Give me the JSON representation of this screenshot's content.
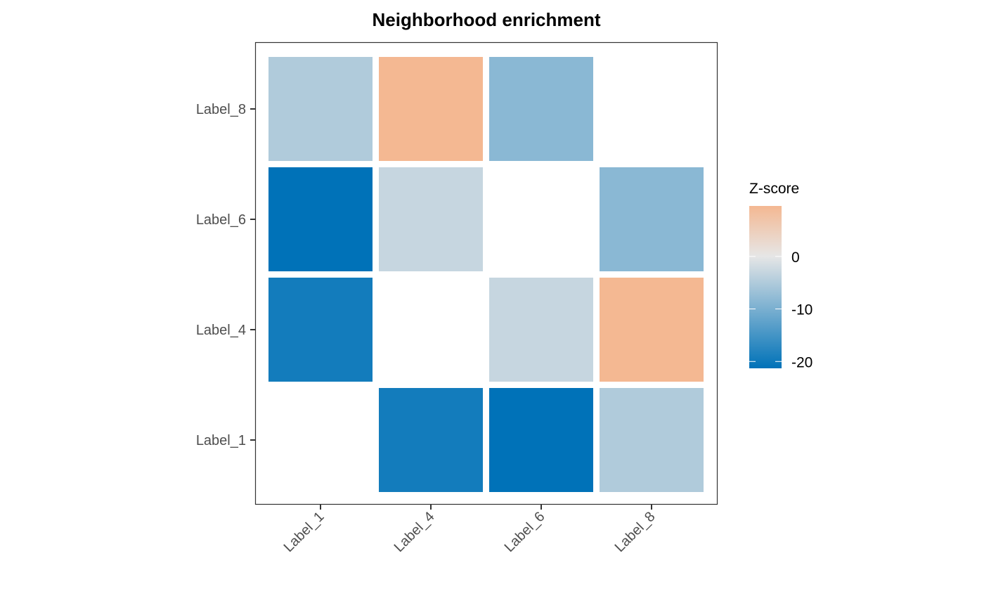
{
  "chart_data": {
    "type": "heatmap",
    "title": "Neighborhood enrichment",
    "xlabel": "",
    "ylabel": "",
    "x_categories": [
      "Label_1",
      "Label_4",
      "Label_6",
      "Label_8"
    ],
    "y_categories": [
      "Label_1",
      "Label_4",
      "Label_6",
      "Label_8"
    ],
    "cells": [
      {
        "x": "Label_1",
        "y": "Label_8",
        "value": -5
      },
      {
        "x": "Label_4",
        "y": "Label_8",
        "value": 9.6
      },
      {
        "x": "Label_6",
        "y": "Label_8",
        "value": -8.5
      },
      {
        "x": "Label_1",
        "y": "Label_6",
        "value": -21.3
      },
      {
        "x": "Label_4",
        "y": "Label_6",
        "value": -3
      },
      {
        "x": "Label_8",
        "y": "Label_6",
        "value": -8.5
      },
      {
        "x": "Label_1",
        "y": "Label_4",
        "value": -19.5
      },
      {
        "x": "Label_6",
        "y": "Label_4",
        "value": -3
      },
      {
        "x": "Label_8",
        "y": "Label_4",
        "value": 9.6
      },
      {
        "x": "Label_4",
        "y": "Label_1",
        "value": -19.5
      },
      {
        "x": "Label_6",
        "y": "Label_1",
        "value": -21.3
      },
      {
        "x": "Label_8",
        "y": "Label_1",
        "value": -5
      }
    ],
    "legend": {
      "title": "Z-score",
      "position": "right",
      "range": [
        -21.3,
        9.6
      ],
      "ticks": [
        0,
        -10,
        -20
      ],
      "tick_labels": [
        "0",
        "-10",
        "-20"
      ],
      "low_color": "#0072B8",
      "mid_color": "#E6E6E6",
      "high_color": "#F4B892"
    }
  }
}
